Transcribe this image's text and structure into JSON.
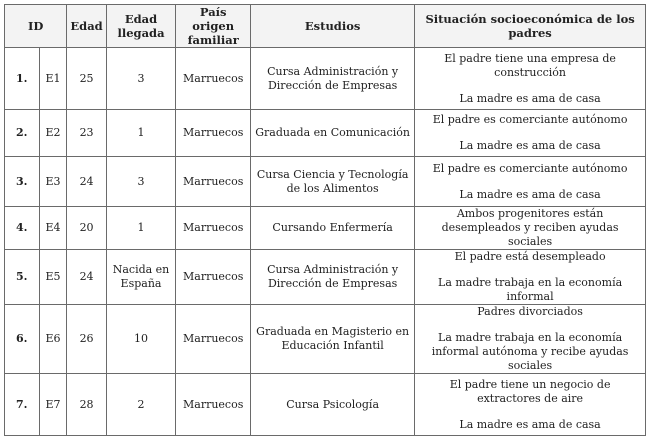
{
  "headers": {
    "id": "ID",
    "edad": "Edad",
    "edad_llegada": "Edad llegada",
    "pais": "País origen familiar",
    "estudios": "Estudios",
    "situacion": "Situación socioeconómica de los padres"
  },
  "rows": [
    {
      "n": "1.",
      "id": "E1",
      "edad": "25",
      "llegada": "3",
      "pais": "Marruecos",
      "estudios": "Cursa Administración y Dirección de Empresas",
      "s1": "El padre tiene una empresa de construcción",
      "s2": "La madre es ama de casa"
    },
    {
      "n": "2.",
      "id": "E2",
      "edad": "23",
      "llegada": "1",
      "pais": "Marruecos",
      "estudios": "Graduada en Comunicación",
      "s1": "El padre es comerciante autónomo",
      "s2": "La madre es ama de casa"
    },
    {
      "n": "3.",
      "id": "E3",
      "edad": "24",
      "llegada": "3",
      "pais": "Marruecos",
      "estudios": "Cursa Ciencia y Tecnología de los Alimentos",
      "s1": "El padre es comerciante autónomo",
      "s2": "La madre es ama de casa"
    },
    {
      "n": "4.",
      "id": "E4",
      "edad": "20",
      "llegada": "1",
      "pais": "Marruecos",
      "estudios": "Cursando Enfermería",
      "s1": "Ambos progenitores están desempleados y reciben ayudas sociales",
      "s2": ""
    },
    {
      "n": "5.",
      "id": "E5",
      "edad": "24",
      "llegada": "Nacida en España",
      "pais": "Marruecos",
      "estudios": "Cursa Administración y Dirección de Empresas",
      "s1": "El padre está desempleado",
      "s2": "La madre trabaja en la economía informal"
    },
    {
      "n": "6.",
      "id": "E6",
      "edad": "26",
      "llegada": "10",
      "pais": "Marruecos",
      "estudios": "Graduada en Magisterio en Educación Infantil",
      "s1": "Padres divorciados",
      "s2": "La madre trabaja en la economía informal autónoma y recibe ayudas sociales"
    },
    {
      "n": "7.",
      "id": "E7",
      "edad": "28",
      "llegada": "2",
      "pais": "Marruecos",
      "estudios": "Cursa Psicología",
      "s1": "El padre tiene un negocio de extractores de aire",
      "s2": "La madre es ama de casa"
    }
  ]
}
